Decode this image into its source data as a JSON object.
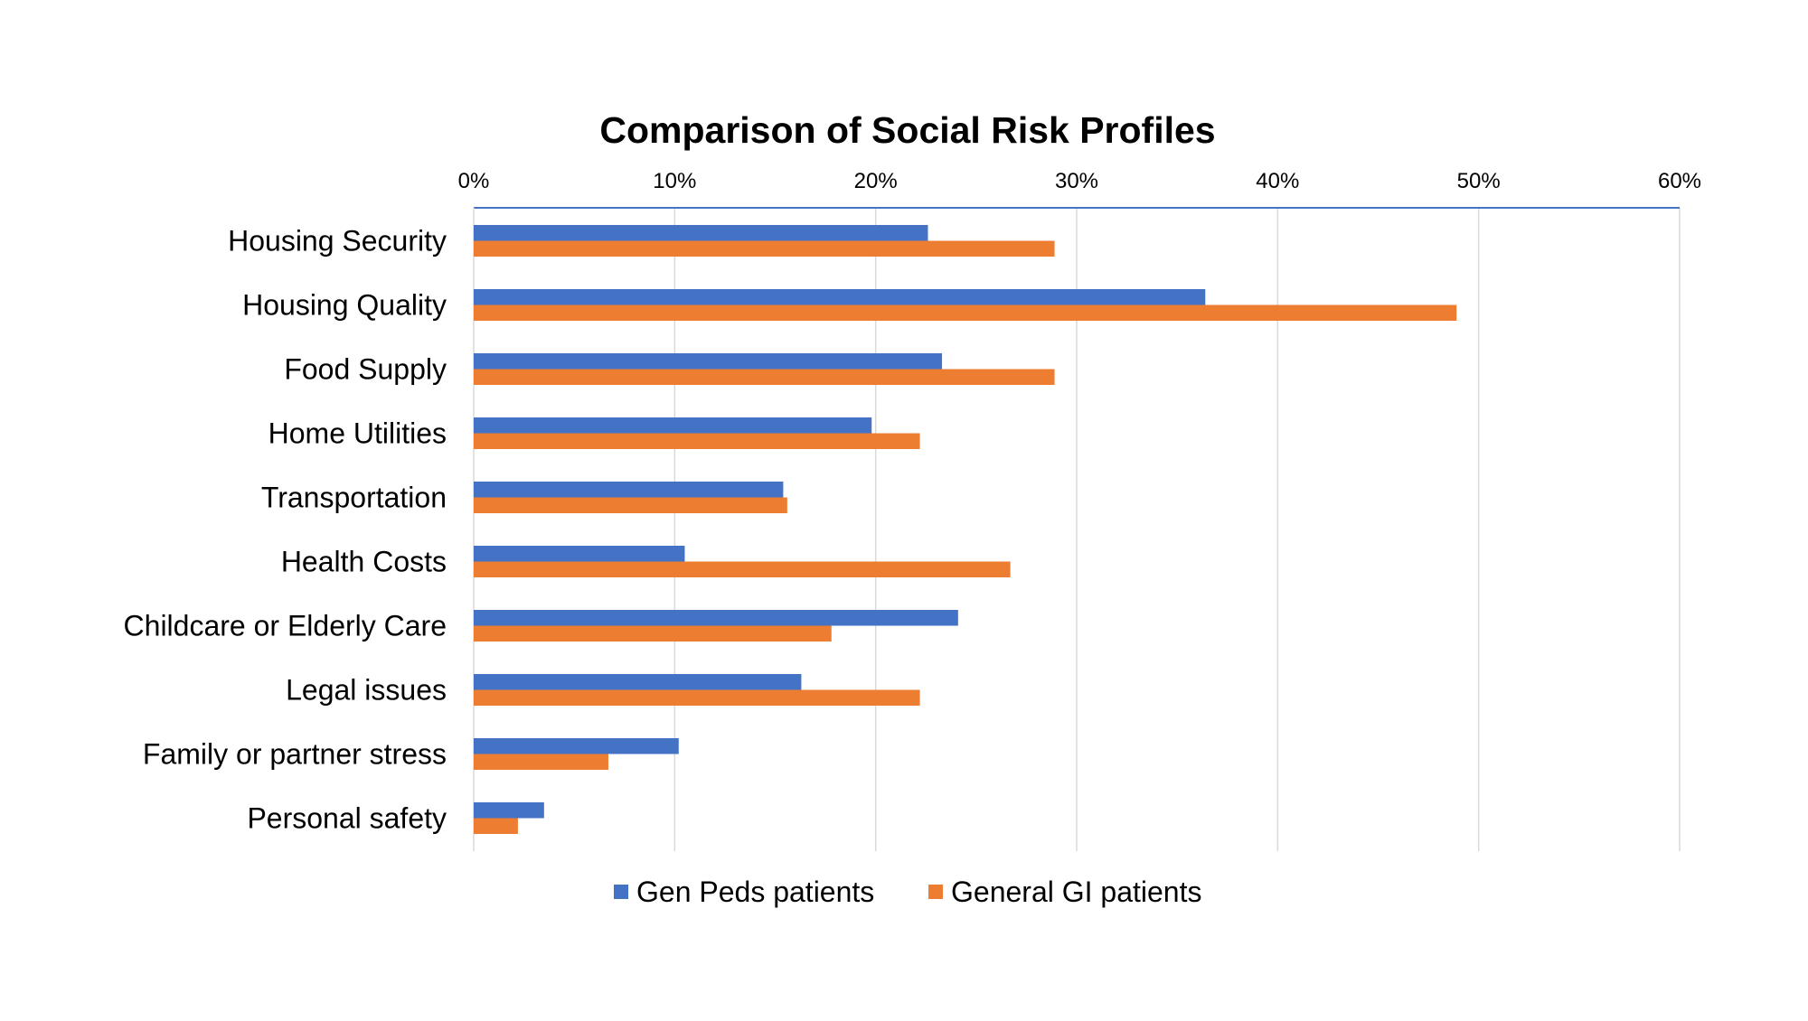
{
  "chart_data": {
    "type": "bar",
    "orientation": "horizontal",
    "title": "Comparison of Social Risk Profiles",
    "xlabel": "",
    "ylabel": "",
    "x_axis_position": "top",
    "xlim": [
      0,
      60
    ],
    "x_ticks": [
      0,
      10,
      20,
      30,
      40,
      50,
      60
    ],
    "x_tick_labels": [
      "0%",
      "10%",
      "20%",
      "30%",
      "40%",
      "50%",
      "60%"
    ],
    "grid": "vertical",
    "legend_position": "bottom",
    "categories": [
      "Housing Security",
      "Housing Quality",
      "Food Supply",
      "Home Utilities",
      "Transportation",
      "Health Costs",
      "Childcare or Elderly Care",
      "Legal issues",
      "Family or partner stress",
      "Personal safety"
    ],
    "series": [
      {
        "name": "Gen Peds patients",
        "color": "#4472C4",
        "values": [
          22.6,
          36.4,
          23.3,
          19.8,
          15.4,
          10.5,
          24.1,
          16.3,
          10.2,
          3.5
        ]
      },
      {
        "name": "General GI patients",
        "color": "#ED7D31",
        "values": [
          28.9,
          48.9,
          28.9,
          22.2,
          15.6,
          26.7,
          17.8,
          22.2,
          6.7,
          2.2
        ]
      }
    ]
  }
}
